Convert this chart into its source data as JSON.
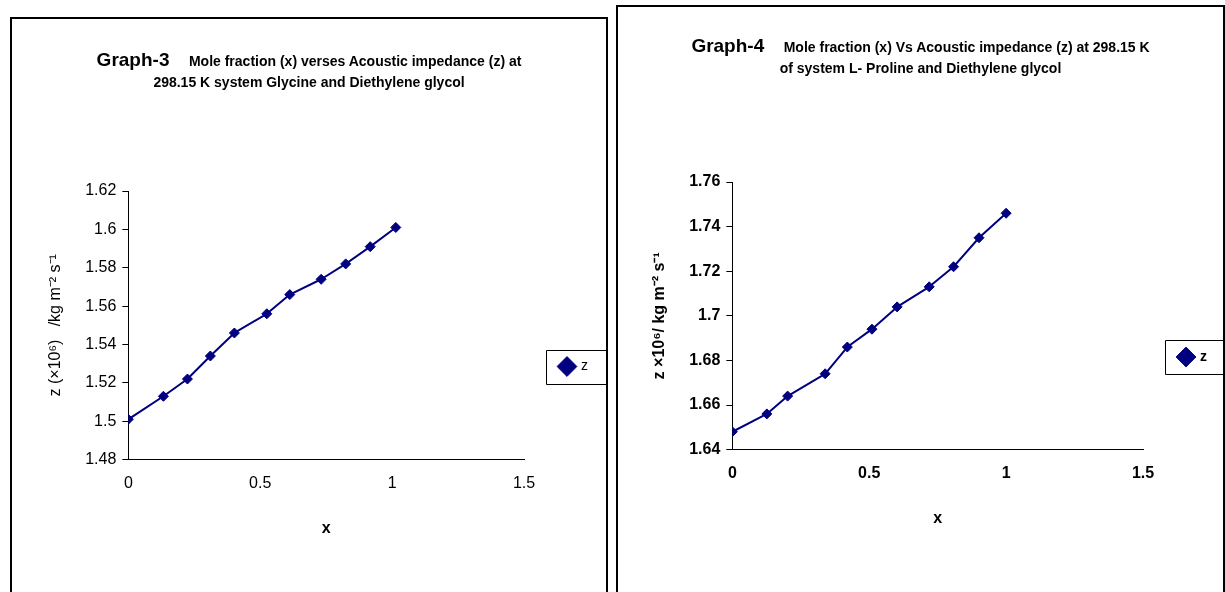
{
  "chart_data": [
    {
      "type": "line",
      "title": "Graph-3     Mole fraction (x) verses Acoustic impedance (z) at 298.15 K system Glycine and Diethylene glycol",
      "xlabel": "x",
      "ylabel": "z (×10⁶)   /kg m⁻² s⁻¹",
      "x": [
        0,
        0.133,
        0.224,
        0.311,
        0.402,
        0.525,
        0.612,
        0.731,
        0.824,
        0.917,
        1.014
      ],
      "series": [
        {
          "name": "z",
          "color": "#000080",
          "values": [
            1.501,
            1.513,
            1.522,
            1.534,
            1.546,
            1.556,
            1.566,
            1.574,
            1.582,
            1.591,
            1.601
          ]
        }
      ],
      "xlim": [
        0,
        1.5
      ],
      "xticks": [
        0,
        0.5,
        1,
        1.5
      ],
      "ylim": [
        1.48,
        1.62
      ],
      "yticks": [
        1.48,
        1.5,
        1.52,
        1.54,
        1.56,
        1.58,
        1.6,
        1.62
      ],
      "grid": false,
      "legend": "right",
      "marker": "diamond",
      "line_style": "solid"
    },
    {
      "type": "line",
      "title": "Graph-4     Mole fraction (x) Vs Acoustic impedance (z) at 298.15 K of system L- Proline and Diethylene glycol",
      "xlabel": "x",
      "ylabel": "z ×10⁶/ kg m⁻² s⁻¹",
      "x": [
        0,
        0.126,
        0.202,
        0.339,
        0.42,
        0.51,
        0.602,
        0.719,
        0.808,
        0.901,
        1.0
      ],
      "series": [
        {
          "name": "z",
          "color": "#000080",
          "values": [
            1.648,
            1.656,
            1.664,
            1.674,
            1.686,
            1.694,
            1.704,
            1.713,
            1.722,
            1.735,
            1.746
          ]
        }
      ],
      "xlim": [
        0,
        1.5
      ],
      "xticks": [
        0,
        0.5,
        1,
        1.5
      ],
      "ylim": [
        1.64,
        1.76
      ],
      "yticks": [
        1.64,
        1.66,
        1.68,
        1.7,
        1.72,
        1.74,
        1.76
      ],
      "grid": false,
      "legend": "right",
      "marker": "diamond",
      "line_style": "solid"
    }
  ]
}
